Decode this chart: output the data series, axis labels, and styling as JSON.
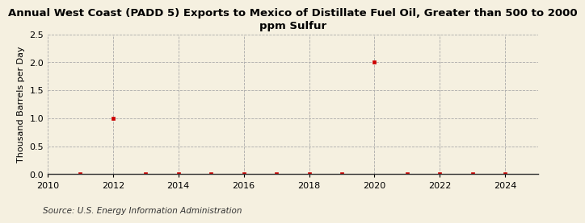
{
  "title": "Annual West Coast (PADD 5) Exports to Mexico of Distillate Fuel Oil, Greater than 500 to 2000\nppm Sulfur",
  "ylabel": "Thousand Barrels per Day",
  "source": "Source: U.S. Energy Information Administration",
  "background_color": "#f5f0e0",
  "plot_background_color": "#f5f0e0",
  "xlim": [
    2010,
    2025
  ],
  "ylim": [
    0.0,
    2.5
  ],
  "xticks": [
    2010,
    2012,
    2014,
    2016,
    2018,
    2020,
    2022,
    2024
  ],
  "yticks": [
    0.0,
    0.5,
    1.0,
    1.5,
    2.0,
    2.5
  ],
  "data_x": [
    2011,
    2012,
    2013,
    2014,
    2015,
    2016,
    2017,
    2018,
    2019,
    2020,
    2021,
    2022,
    2023,
    2024
  ],
  "data_y": [
    0.0,
    1.0,
    0.0,
    0.0,
    0.0,
    0.0,
    0.0,
    0.0,
    0.0,
    2.0,
    0.0,
    0.0,
    0.0,
    0.0
  ],
  "marker_color": "#cc0000",
  "marker": "s",
  "marker_size": 3,
  "grid_color": "#aaaaaa",
  "grid_style": "--",
  "title_fontsize": 9.5,
  "axis_fontsize": 8,
  "tick_fontsize": 8,
  "source_fontsize": 7.5
}
